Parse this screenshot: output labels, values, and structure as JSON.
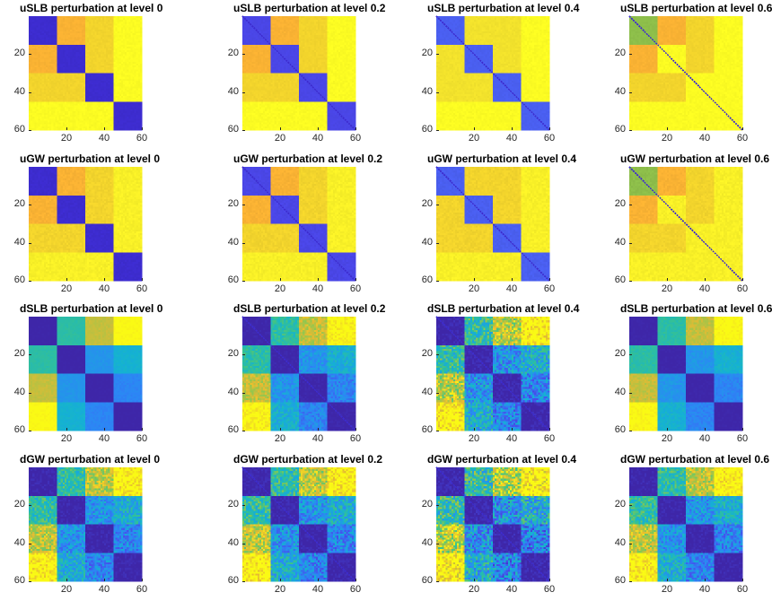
{
  "chart_data": [
    {
      "type": "heatmap",
      "title": "uSLB perturbation at level 0",
      "method": "uSLB",
      "level": 0,
      "base": "#fbfb22",
      "diag": "#3d2ccf",
      "diag_blue": "#3d2ccf",
      "offdiag_a": "#f9b233",
      "offdiag_b": "#f2d42c",
      "noise": 0.02,
      "diag_line": false,
      "xticks": [
        20,
        40,
        60
      ],
      "yticks": [
        20,
        40,
        60
      ],
      "n": 60
    },
    {
      "type": "heatmap",
      "title": "uSLB perturbation at level 0.2",
      "method": "uSLB",
      "level": 0.2,
      "base": "#fbfb22",
      "diag": "#4a46e6",
      "diag_blue": "#3d2ccf",
      "offdiag_a": "#f9b233",
      "offdiag_b": "#f2d42c",
      "noise": 0.02,
      "diag_line": true,
      "xticks": [
        20,
        40,
        60
      ],
      "yticks": [
        20,
        40,
        60
      ],
      "n": 60
    },
    {
      "type": "heatmap",
      "title": "uSLB perturbation at level 0.4",
      "method": "uSLB",
      "level": 0.4,
      "base": "#fbfb22",
      "diag": "#4a5ff0",
      "diag_blue": "#3d2ccf",
      "offdiag_a": "#f2e22c",
      "offdiag_b": "#f2e22c",
      "noise": 0.02,
      "diag_line": true,
      "xticks": [
        20,
        40,
        60
      ],
      "yticks": [
        20,
        40,
        60
      ],
      "n": 60
    },
    {
      "type": "heatmap",
      "title": "uSLB perturbation at level 0.6",
      "method": "uSLB",
      "level": 0.6,
      "base": "#fbfb22",
      "diag": "#8dbe4a",
      "diag_blue": "#3d2ccf",
      "offdiag_a": "#f9b233",
      "offdiag_b": "#f2d42c",
      "noise": 0.02,
      "diag_line": true,
      "xticks": [
        20,
        40,
        60
      ],
      "yticks": [
        20,
        40,
        60
      ],
      "n": 60
    },
    {
      "type": "heatmap",
      "title": "uGW perturbation at level 0",
      "method": "uGW",
      "level": 0,
      "base": "#f8f027",
      "diag": "#3d2ccf",
      "diag_blue": "#3d2ccf",
      "offdiag_a": "#f9b233",
      "offdiag_b": "#f2d42c",
      "noise": 0.03,
      "diag_line": false,
      "xticks": [
        20,
        40,
        60
      ],
      "yticks": [
        20,
        40,
        60
      ],
      "n": 60
    },
    {
      "type": "heatmap",
      "title": "uGW perturbation at level 0.2",
      "method": "uGW",
      "level": 0.2,
      "base": "#f8f027",
      "diag": "#4a46e6",
      "diag_blue": "#3d2ccf",
      "offdiag_a": "#f9b233",
      "offdiag_b": "#f2d42c",
      "noise": 0.03,
      "diag_line": true,
      "xticks": [
        20,
        40,
        60
      ],
      "yticks": [
        20,
        40,
        60
      ],
      "n": 60
    },
    {
      "type": "heatmap",
      "title": "uGW perturbation at level 0.4",
      "method": "uGW",
      "level": 0.4,
      "base": "#f8f027",
      "diag": "#4a5ff0",
      "diag_blue": "#3d2ccf",
      "offdiag_a": "#f2d42c",
      "offdiag_b": "#f2d42c",
      "noise": 0.03,
      "diag_line": true,
      "xticks": [
        20,
        40,
        60
      ],
      "yticks": [
        20,
        40,
        60
      ],
      "n": 60
    },
    {
      "type": "heatmap",
      "title": "uGW perturbation at level 0.6",
      "method": "uGW",
      "level": 0.6,
      "base": "#f8f027",
      "diag": "#8dbe4a",
      "diag_blue": "#3d2ccf",
      "offdiag_a": "#f9b233",
      "offdiag_b": "#f2d42c",
      "noise": 0.03,
      "diag_line": true,
      "xticks": [
        20,
        40,
        60
      ],
      "yticks": [
        20,
        40,
        60
      ],
      "n": 60
    },
    {
      "type": "heatmap",
      "title": "dSLB perturbation at level 0",
      "method": "dSLB",
      "level": 0,
      "diag": "#3d2ccf",
      "noise": 0.02,
      "diag_line": false,
      "xticks": [
        20,
        40,
        60
      ],
      "yticks": [
        20,
        40,
        60
      ],
      "n": 60
    },
    {
      "type": "heatmap",
      "title": "dSLB perturbation at level 0.2",
      "method": "dSLB",
      "level": 0.2,
      "diag": "#3d2ccf",
      "noise": 0.08,
      "diag_line": true,
      "xticks": [
        20,
        40,
        60
      ],
      "yticks": [
        20,
        40,
        60
      ],
      "n": 60
    },
    {
      "type": "heatmap",
      "title": "dSLB perturbation at level 0.4",
      "method": "dSLB",
      "level": 0.4,
      "diag": "#3d2ccf",
      "noise": 0.18,
      "diag_line": true,
      "xticks": [
        20,
        40,
        60
      ],
      "yticks": [
        20,
        40,
        60
      ],
      "n": 60
    },
    {
      "type": "heatmap",
      "title": "dSLB perturbation at level 0.6",
      "method": "dSLB",
      "level": 0.6,
      "diag": "#3d2ccf",
      "noise": 0.04,
      "diag_line": false,
      "xticks": [
        20,
        40,
        60
      ],
      "yticks": [
        20,
        40,
        60
      ],
      "n": 60
    },
    {
      "type": "heatmap",
      "title": "dGW perturbation at level 0",
      "method": "dGW",
      "level": 0,
      "diag": "#3d2ccf",
      "noise": 0.14,
      "diag_line": false,
      "xticks": [
        20,
        40,
        60
      ],
      "yticks": [
        20,
        40,
        60
      ],
      "n": 60
    },
    {
      "type": "heatmap",
      "title": "dGW perturbation at level 0.2",
      "method": "dGW",
      "level": 0.2,
      "diag": "#3d2ccf",
      "noise": 0.16,
      "diag_line": true,
      "xticks": [
        20,
        40,
        60
      ],
      "yticks": [
        20,
        40,
        60
      ],
      "n": 60
    },
    {
      "type": "heatmap",
      "title": "dGW perturbation at level 0.4",
      "method": "dGW",
      "level": 0.4,
      "diag": "#3d2ccf",
      "noise": 0.22,
      "diag_line": true,
      "xticks": [
        20,
        40,
        60
      ],
      "yticks": [
        20,
        40,
        60
      ],
      "n": 60
    },
    {
      "type": "heatmap",
      "title": "dGW perturbation at level 0.6",
      "method": "dGW",
      "level": 0.6,
      "diag": "#3d2ccf",
      "noise": 0.14,
      "diag_line": false,
      "xticks": [
        20,
        40,
        60
      ],
      "yticks": [
        20,
        40,
        60
      ],
      "n": 60
    }
  ]
}
